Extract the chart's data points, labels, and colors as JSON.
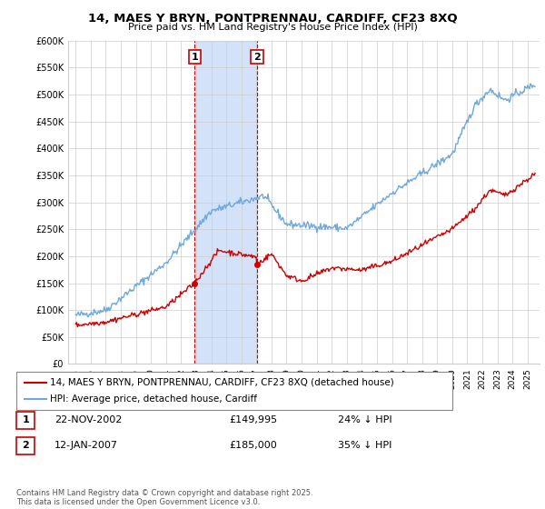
{
  "title": "14, MAES Y BRYN, PONTPRENNAU, CARDIFF, CF23 8XQ",
  "subtitle": "Price paid vs. HM Land Registry's House Price Index (HPI)",
  "ylim": [
    0,
    600000
  ],
  "yticks": [
    0,
    50000,
    100000,
    150000,
    200000,
    250000,
    300000,
    350000,
    400000,
    450000,
    500000,
    550000,
    600000
  ],
  "ytick_labels": [
    "£0",
    "£50K",
    "£100K",
    "£150K",
    "£200K",
    "£250K",
    "£300K",
    "£350K",
    "£400K",
    "£450K",
    "£500K",
    "£550K",
    "£600K"
  ],
  "hpi_color": "#6fa8dc",
  "price_color": "#cc0000",
  "annotation_box_color": "#cc0000",
  "shading_color": "#c9daf8",
  "sale1_date_num": 2002.9,
  "sale2_date_num": 2007.04,
  "sale1_label": "1",
  "sale2_label": "2",
  "sale1_price": 149995,
  "sale2_price": 185000,
  "legend_line1": "14, MAES Y BRYN, PONTPRENNAU, CARDIFF, CF23 8XQ (detached house)",
  "legend_line2": "HPI: Average price, detached house, Cardiff",
  "table_row1": [
    "1",
    "22-NOV-2002",
    "£149,995",
    "24% ↓ HPI"
  ],
  "table_row2": [
    "2",
    "12-JAN-2007",
    "£185,000",
    "35% ↓ HPI"
  ],
  "footer": "Contains HM Land Registry data © Crown copyright and database right 2025.\nThis data is licensed under the Open Government Licence v3.0.",
  "background_color": "#ffffff",
  "grid_color": "#cccccc"
}
